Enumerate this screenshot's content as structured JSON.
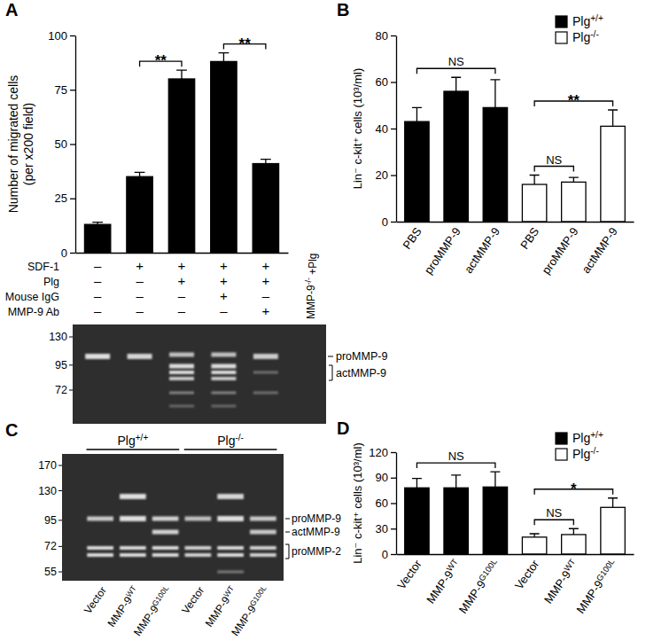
{
  "chart_data": [
    {
      "type": "bar",
      "panel_label": "A",
      "y_label": "Number of migrated cells (per x200 field)",
      "categories": [
        null,
        null,
        null,
        null,
        null
      ],
      "values": [
        13,
        35,
        80,
        88,
        41
      ],
      "errors": [
        1,
        2,
        4,
        4,
        2
      ],
      "color": "#000000",
      "ylim": [
        0,
        100
      ],
      "yticks": [
        0,
        25,
        50,
        75,
        100
      ],
      "tick_labels": "y",
      "annotations": [
        {
          "text": "**",
          "from": 1,
          "to": 2
        },
        {
          "text": "**",
          "from": 3,
          "to": 4
        }
      ],
      "conditions": [
        {
          "label": "SDF-1",
          "values": [
            "–",
            "+",
            "+",
            "+",
            "+"
          ]
        },
        {
          "label": "Plg",
          "values": [
            "–",
            "–",
            "+",
            "+",
            "+"
          ]
        },
        {
          "label": "Mouse IgG",
          "values": [
            "–",
            "–",
            "–",
            "+",
            "–"
          ]
        },
        {
          "label": "MMP-9 Ab",
          "values": [
            "–",
            "–",
            "–",
            "–",
            "+"
          ]
        }
      ]
    },
    {
      "type": "bar",
      "panel_label": "B",
      "y_label": "Lin⁻ c-kit⁺ cells (10³/ml)",
      "categories": [
        "PBS",
        "proMMP-9",
        "actMMP-9",
        "PBS",
        "proMMP-9",
        "actMMP-9"
      ],
      "series": [
        {
          "name": "Plg+/+",
          "color": "#000000",
          "values": [
            43,
            56,
            49,
            null,
            null,
            null
          ],
          "errors": [
            6,
            6,
            12,
            null,
            null,
            null
          ]
        },
        {
          "name": "Plg-/-",
          "color": "#ffffff",
          "values": [
            null,
            null,
            null,
            16,
            17,
            41
          ],
          "errors": [
            null,
            null,
            null,
            4,
            2,
            7
          ]
        }
      ],
      "legend": "top-right",
      "ylim": [
        0,
        80
      ],
      "yticks": [
        0,
        20,
        40,
        60,
        80
      ],
      "annotations": [
        {
          "text": "NS",
          "from": 0,
          "to": 2
        },
        {
          "text": "NS",
          "from": 3,
          "to": 4
        },
        {
          "text": "**",
          "from": 3,
          "to": 5
        }
      ]
    },
    {
      "type": "bar",
      "panel_label": "D",
      "y_label": "Lin⁻ c-kit⁺ cells (10³/ml)",
      "categories": [
        "Vector",
        "MMP-9WT",
        "MMP-9G100L",
        "Vector",
        "MMP-9WT",
        "MMP-9G100L"
      ],
      "series": [
        {
          "name": "Plg+/+",
          "color": "#000000",
          "values": [
            78,
            78,
            79,
            null,
            null,
            null
          ],
          "errors": [
            11,
            15,
            18,
            null,
            null,
            null
          ]
        },
        {
          "name": "Plg-/-",
          "color": "#ffffff",
          "values": [
            null,
            null,
            null,
            20,
            23,
            55
          ],
          "errors": [
            null,
            null,
            null,
            4,
            7,
            11
          ]
        }
      ],
      "legend": "top-right",
      "ylim": [
        0,
        120
      ],
      "yticks": [
        0,
        30,
        60,
        90,
        120
      ],
      "annotations": [
        {
          "text": "NS",
          "from": 0,
          "to": 2
        },
        {
          "text": "NS",
          "from": 3,
          "to": 4
        },
        {
          "text": "*",
          "from": 3,
          "to": 5
        }
      ]
    }
  ],
  "gels": [
    {
      "markers": [
        130,
        95,
        72
      ],
      "band_labels": [
        "proMMP-9",
        "actMMP-9"
      ],
      "lane_label": "MMP-9-/- +Plg"
    },
    {
      "panel_label": "C",
      "groups": [
        "Plg+/+",
        "Plg-/-"
      ],
      "lanes": [
        "Vector",
        "MMP-9WT",
        "MMP-9G100L",
        "Vector",
        "MMP-9WT",
        "MMP-9G100L"
      ],
      "markers": [
        170,
        130,
        95,
        72,
        55
      ],
      "band_labels": [
        "proMMP-9",
        "actMMP-9",
        "proMMP-2"
      ]
    }
  ]
}
